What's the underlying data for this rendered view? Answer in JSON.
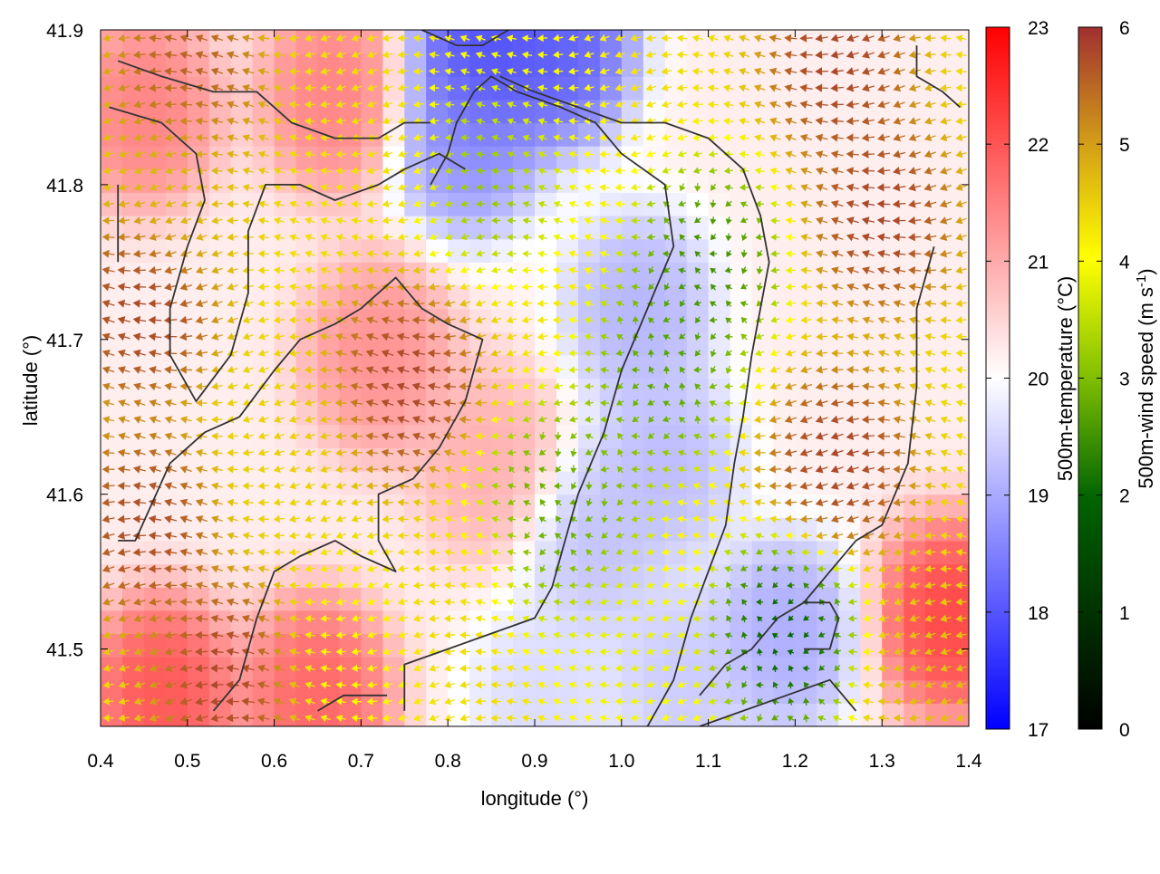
{
  "chart_data": {
    "type": "heatmap",
    "title": "",
    "xlabel": "longitude (°)",
    "ylabel": "latitude (°)",
    "xlim": [
      0.4,
      1.4
    ],
    "ylim": [
      41.45,
      41.9
    ],
    "xticks": [
      0.4,
      0.5,
      0.6,
      0.7,
      0.8,
      0.9,
      1.0,
      1.1,
      1.2,
      1.3,
      1.4
    ],
    "yticks": [
      41.5,
      41.6,
      41.7,
      41.8,
      41.9
    ],
    "xtick_labels": [
      "0.4",
      "0.5",
      "0.6",
      "0.7",
      "0.8",
      "0.9",
      "1.0",
      "1.1",
      "1.2",
      "1.3",
      "1.4"
    ],
    "ytick_labels": [
      "41.5",
      "41.6",
      "41.7",
      "41.8",
      "41.9"
    ],
    "grid": false,
    "background_field": {
      "name": "500m-temperature",
      "unit": "°C",
      "range": [
        17,
        23
      ],
      "colorbar_label": "500m-temperature (°C)",
      "colorbar_ticks": [
        17,
        18,
        19,
        20,
        21,
        22,
        23
      ],
      "colormap": [
        "#0000ff",
        "#ffffff",
        "#ff0000"
      ],
      "anomalies": [
        {
          "lon": 0.84,
          "lat": 41.88,
          "value": 17.6
        },
        {
          "lon": 0.93,
          "lat": 41.89,
          "value": 17.9
        },
        {
          "lon": 0.82,
          "lat": 41.83,
          "value": 18.6
        },
        {
          "lon": 1.02,
          "lat": 41.72,
          "value": 19.0
        },
        {
          "lon": 1.05,
          "lat": 41.62,
          "value": 19.1
        },
        {
          "lon": 0.97,
          "lat": 41.57,
          "value": 19.2
        },
        {
          "lon": 1.19,
          "lat": 41.51,
          "value": 18.9
        },
        {
          "lon": 1.07,
          "lat": 41.48,
          "value": 19.3
        },
        {
          "lon": 0.91,
          "lat": 41.47,
          "value": 19.5
        },
        {
          "lon": 0.45,
          "lat": 41.85,
          "value": 21.6
        },
        {
          "lon": 0.67,
          "lat": 41.86,
          "value": 21.6
        },
        {
          "lon": 0.72,
          "lat": 41.69,
          "value": 21.4
        },
        {
          "lon": 0.47,
          "lat": 41.47,
          "value": 22.2
        },
        {
          "lon": 0.65,
          "lat": 41.47,
          "value": 22.0
        },
        {
          "lon": 1.38,
          "lat": 41.52,
          "value": 22.4
        },
        {
          "lon": 0.85,
          "lat": 41.62,
          "value": 21.0
        }
      ]
    },
    "vector_field": {
      "name": "500m-wind speed",
      "unit": "m s-1",
      "range": [
        0,
        6
      ],
      "colorbar_label": "500m-wind speed (m s-1)",
      "colorbar_label_parts": [
        "500m-wind speed (m s",
        "-1",
        ")"
      ],
      "colorbar_ticks": [
        0,
        1,
        2,
        3,
        4,
        5,
        6
      ],
      "colormap": [
        "#000000",
        "#006400",
        "#7fbf00",
        "#ffff00",
        "#d4a017",
        "#a03030"
      ],
      "dominant_direction": "westward (pointing to decreasing longitude)",
      "regions": [
        {
          "lon": 0.45,
          "lat": 41.72,
          "speed": 6.0
        },
        {
          "lon": 0.45,
          "lat": 41.58,
          "speed": 5.9
        },
        {
          "lon": 0.5,
          "lat": 41.87,
          "speed": 5.7
        },
        {
          "lon": 0.55,
          "lat": 41.48,
          "speed": 6.0
        },
        {
          "lon": 0.75,
          "lat": 41.67,
          "speed": 6.0
        },
        {
          "lon": 1.3,
          "lat": 41.78,
          "speed": 6.0
        },
        {
          "lon": 1.25,
          "lat": 41.88,
          "speed": 6.0
        },
        {
          "lon": 1.25,
          "lat": 41.62,
          "speed": 6.0
        },
        {
          "lon": 1.1,
          "lat": 41.75,
          "speed": 1.5
        },
        {
          "lon": 1.05,
          "lat": 41.68,
          "speed": 1.8
        },
        {
          "lon": 0.95,
          "lat": 41.6,
          "speed": 2.1
        },
        {
          "lon": 0.85,
          "lat": 41.81,
          "speed": 2.3
        },
        {
          "lon": 0.9,
          "lat": 41.58,
          "speed": 1.9
        },
        {
          "lon": 1.19,
          "lat": 41.51,
          "speed": 0.8
        },
        {
          "lon": 0.62,
          "lat": 41.63,
          "speed": 4.2
        },
        {
          "lon": 0.72,
          "lat": 41.82,
          "speed": 4.0
        },
        {
          "lon": 0.82,
          "lat": 41.55,
          "speed": 4.1
        },
        {
          "lon": 0.5,
          "lat": 41.8,
          "speed": 4.4
        },
        {
          "lon": 0.9,
          "lat": 41.86,
          "speed": 3.5
        },
        {
          "lon": 1.0,
          "lat": 41.5,
          "speed": 3.3
        },
        {
          "lon": 0.68,
          "lat": 41.49,
          "speed": 3.6
        },
        {
          "lon": 1.35,
          "lat": 41.48,
          "speed": 4.5
        }
      ]
    },
    "contours": [
      [
        [
          0.42,
          41.88
        ],
        [
          0.47,
          41.87
        ],
        [
          0.53,
          41.86
        ],
        [
          0.58,
          41.86
        ],
        [
          0.62,
          41.84
        ],
        [
          0.67,
          41.83
        ],
        [
          0.72,
          41.83
        ],
        [
          0.75,
          41.84
        ],
        [
          0.78,
          41.84
        ]
      ],
      [
        [
          0.41,
          41.85
        ],
        [
          0.47,
          41.84
        ],
        [
          0.51,
          41.82
        ],
        [
          0.52,
          41.79
        ],
        [
          0.5,
          41.76
        ],
        [
          0.48,
          41.72
        ],
        [
          0.48,
          41.69
        ],
        [
          0.51,
          41.66
        ],
        [
          0.55,
          41.69
        ],
        [
          0.57,
          41.73
        ],
        [
          0.57,
          41.77
        ],
        [
          0.59,
          41.8
        ],
        [
          0.63,
          41.8
        ],
        [
          0.67,
          41.79
        ],
        [
          0.72,
          41.8
        ],
        [
          0.75,
          41.81
        ],
        [
          0.79,
          41.82
        ],
        [
          0.82,
          41.81
        ]
      ],
      [
        [
          0.42,
          41.57
        ],
        [
          0.44,
          41.57
        ],
        [
          0.48,
          41.62
        ],
        [
          0.52,
          41.64
        ],
        [
          0.56,
          41.65
        ],
        [
          0.6,
          41.68
        ],
        [
          0.63,
          41.7
        ],
        [
          0.67,
          41.71
        ],
        [
          0.7,
          41.72
        ],
        [
          0.74,
          41.74
        ],
        [
          0.77,
          41.72
        ],
        [
          0.8,
          41.71
        ],
        [
          0.84,
          41.7
        ],
        [
          0.82,
          41.66
        ],
        [
          0.79,
          41.63
        ],
        [
          0.76,
          41.61
        ],
        [
          0.72,
          41.6
        ],
        [
          0.72,
          41.57
        ],
        [
          0.74,
          41.55
        ],
        [
          0.7,
          41.56
        ],
        [
          0.67,
          41.57
        ],
        [
          0.63,
          41.56
        ],
        [
          0.6,
          41.55
        ],
        [
          0.58,
          41.52
        ],
        [
          0.56,
          41.48
        ],
        [
          0.53,
          41.46
        ]
      ],
      [
        [
          0.75,
          41.46
        ],
        [
          0.75,
          41.49
        ],
        [
          0.8,
          41.5
        ],
        [
          0.85,
          41.51
        ],
        [
          0.9,
          41.52
        ],
        [
          0.92,
          41.54
        ],
        [
          0.93,
          41.56
        ],
        [
          0.95,
          41.6
        ],
        [
          0.98,
          41.64
        ],
        [
          1.0,
          41.68
        ],
        [
          1.03,
          41.72
        ],
        [
          1.06,
          41.76
        ],
        [
          1.05,
          41.8
        ],
        [
          1.0,
          41.82
        ],
        [
          0.97,
          41.84
        ],
        [
          0.93,
          41.85
        ],
        [
          0.88,
          41.86
        ],
        [
          0.85,
          41.87
        ],
        [
          0.83,
          41.86
        ],
        [
          0.81,
          41.84
        ],
        [
          0.8,
          41.82
        ],
        [
          0.78,
          41.8
        ]
      ],
      [
        [
          0.86,
          41.87
        ],
        [
          0.9,
          41.86
        ],
        [
          0.95,
          41.85
        ],
        [
          1.0,
          41.84
        ],
        [
          1.05,
          41.84
        ],
        [
          1.1,
          41.83
        ],
        [
          1.14,
          41.81
        ],
        [
          1.16,
          41.78
        ],
        [
          1.17,
          41.75
        ],
        [
          1.16,
          41.72
        ],
        [
          1.15,
          41.69
        ],
        [
          1.14,
          41.65
        ],
        [
          1.13,
          41.62
        ],
        [
          1.12,
          41.58
        ],
        [
          1.1,
          41.55
        ],
        [
          1.08,
          41.52
        ],
        [
          1.06,
          41.48
        ],
        [
          1.03,
          41.45
        ]
      ],
      [
        [
          1.09,
          41.47
        ],
        [
          1.12,
          41.49
        ],
        [
          1.15,
          41.5
        ],
        [
          1.18,
          41.52
        ],
        [
          1.21,
          41.53
        ],
        [
          1.24,
          41.55
        ],
        [
          1.27,
          41.57
        ],
        [
          1.3,
          41.58
        ],
        [
          1.33,
          41.62
        ],
        [
          1.34,
          41.67
        ],
        [
          1.34,
          41.72
        ],
        [
          1.36,
          41.76
        ]
      ],
      [
        [
          1.09,
          41.45
        ],
        [
          1.14,
          41.46
        ],
        [
          1.19,
          41.47
        ],
        [
          1.24,
          41.48
        ],
        [
          1.27,
          41.46
        ]
      ],
      [
        [
          1.34,
          41.89
        ],
        [
          1.34,
          41.87
        ],
        [
          1.37,
          41.86
        ],
        [
          1.39,
          41.85
        ]
      ],
      [
        [
          0.77,
          41.9
        ],
        [
          0.81,
          41.89
        ],
        [
          0.84,
          41.89
        ],
        [
          0.87,
          41.9
        ]
      ],
      [
        [
          0.65,
          41.46
        ],
        [
          0.68,
          41.47
        ],
        [
          0.7,
          41.47
        ],
        [
          0.73,
          41.47
        ]
      ],
      [
        [
          1.21,
          41.5
        ],
        [
          1.24,
          41.5
        ],
        [
          1.25,
          41.52
        ],
        [
          1.24,
          41.53
        ],
        [
          1.21,
          41.53
        ]
      ],
      [
        [
          0.42,
          41.75
        ],
        [
          0.42,
          41.78
        ],
        [
          0.42,
          41.8
        ]
      ]
    ],
    "legend": "colorbars-right"
  }
}
